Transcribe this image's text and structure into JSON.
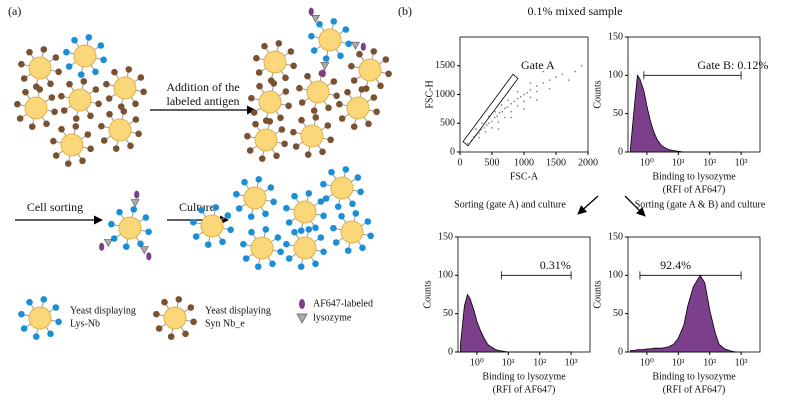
{
  "panel_a": {
    "label": "(a)",
    "addition_step": [
      "Addition of the",
      "labeled antigen"
    ],
    "sorting_step": "Cell sorting",
    "culture_step": "Culture",
    "legend": [
      [
        "Yeast displaying",
        "Lys-Nb"
      ],
      [
        "Yeast displaying",
        "Syn Nb_e"
      ],
      [
        "AF647-labeled",
        "lysozyme"
      ]
    ]
  },
  "panel_b": {
    "label": "(b)",
    "title": "0.1% mixed sample",
    "sorting_labels": [
      "Sorting (gate A) and culture",
      "Sorting (gate A & B) and culture"
    ]
  },
  "chart_data": [
    {
      "type": "scatter",
      "xlabel": [
        "FSC-A"
      ],
      "ylabel": "FSC-H",
      "color": "#8a8a8a",
      "xlim": [
        0,
        2000
      ],
      "ylim": [
        0,
        2000
      ],
      "xticks": [
        0,
        500,
        1000,
        1500,
        2000
      ],
      "yticks": [
        0,
        500,
        1000,
        1500
      ],
      "x": [
        120,
        180,
        220,
        260,
        300,
        330,
        380,
        420,
        450,
        500,
        540,
        580,
        620,
        660,
        700,
        740,
        800,
        850,
        900,
        950,
        1000,
        1050,
        1100,
        1200,
        1300,
        1400,
        1500,
        1600,
        300,
        400,
        500,
        600,
        700,
        800,
        900,
        1000,
        1100,
        1200,
        350,
        450,
        550,
        650,
        750,
        600,
        800,
        1000,
        1200,
        1400,
        1700,
        1800,
        1900,
        1300,
        1100,
        900,
        250
      ],
      "values": [
        150,
        200,
        260,
        300,
        330,
        390,
        420,
        470,
        500,
        530,
        600,
        620,
        680,
        700,
        760,
        780,
        840,
        880,
        930,
        960,
        1000,
        1030,
        1080,
        1150,
        1200,
        1250,
        1300,
        1350,
        250,
        350,
        420,
        520,
        600,
        700,
        800,
        880,
        950,
        1050,
        500,
        620,
        700,
        820,
        900,
        400,
        600,
        750,
        900,
        1100,
        1250,
        1400,
        1500,
        1400,
        1200,
        1050,
        400
      ],
      "gate": {
        "label": "Gate A",
        "x": [
          47,
          828,
          906,
          125
        ],
        "y": [
          180,
          1351,
          1279,
          108
        ]
      }
    },
    {
      "type": "area",
      "xscale": "log",
      "xlabel": [
        "Binding to lysozyme",
        "(RFI of AF647)"
      ],
      "ylabel": "Counts",
      "color": "#7b3f8c",
      "xlim": [
        0.25,
        4000
      ],
      "ylim": [
        0,
        150
      ],
      "xticks": [
        {
          "value": 1,
          "label": "10⁰"
        },
        {
          "value": 10,
          "label": "10¹"
        },
        {
          "value": 100,
          "label": "10²"
        },
        {
          "value": 1000,
          "label": "10³"
        }
      ],
      "yticks": [
        0,
        50,
        100,
        150
      ],
      "x": [
        0.3,
        0.4,
        0.5,
        0.6,
        0.8,
        1,
        1.3,
        1.7,
        2.2,
        3,
        4,
        5,
        7,
        10,
        15,
        20,
        30,
        50,
        70,
        100,
        150,
        200,
        300,
        500,
        700,
        1000
      ],
      "values": [
        5,
        60,
        100,
        95,
        80,
        60,
        40,
        25,
        15,
        8,
        5,
        3,
        2,
        1,
        0,
        0,
        0,
        0,
        0,
        0,
        0,
        0,
        0,
        0,
        0,
        0
      ],
      "gate": {
        "label": "Gate B: 0.12%",
        "range": [
          0.8,
          1000
        ],
        "y": 100
      }
    },
    {
      "type": "area",
      "xscale": "log",
      "xlabel": [
        "Binding to lysozyme",
        "(RFI of AF647)"
      ],
      "ylabel": "Counts",
      "color": "#7b3f8c",
      "xlim": [
        0.25,
        4000
      ],
      "ylim": [
        0,
        150
      ],
      "xticks": [
        {
          "value": 1,
          "label": "10⁰"
        },
        {
          "value": 10,
          "label": "10¹"
        },
        {
          "value": 100,
          "label": "10²"
        },
        {
          "value": 1000,
          "label": "10³"
        }
      ],
      "yticks": [
        0,
        50,
        100,
        150
      ],
      "x": [
        0.3,
        0.4,
        0.5,
        0.6,
        0.8,
        1,
        1.3,
        1.7,
        2.2,
        3,
        4,
        5,
        7,
        10,
        15,
        20,
        30,
        50,
        70,
        100,
        150,
        200,
        300,
        500,
        700,
        1000
      ],
      "values": [
        10,
        60,
        75,
        70,
        55,
        40,
        28,
        18,
        10,
        6,
        3,
        2,
        1,
        0,
        0,
        0,
        0,
        0,
        0,
        0,
        0,
        0,
        0,
        0,
        0,
        0
      ],
      "gate": {
        "label": "0.31%",
        "range": [
          6,
          1000
        ],
        "y": 100
      }
    },
    {
      "type": "area",
      "xscale": "log",
      "xlabel": [
        "Binding to lysozyme",
        "(RFI of AF647)"
      ],
      "ylabel": "Counts",
      "color": "#7b3f8c",
      "xlim": [
        0.25,
        4000
      ],
      "ylim": [
        0,
        150
      ],
      "xticks": [
        {
          "value": 1,
          "label": "10⁰"
        },
        {
          "value": 10,
          "label": "10¹"
        },
        {
          "value": 100,
          "label": "10²"
        },
        {
          "value": 1000,
          "label": "10³"
        }
      ],
      "yticks": [
        0,
        50,
        100,
        150
      ],
      "x": [
        0.3,
        0.4,
        0.5,
        0.6,
        0.8,
        1,
        1.3,
        1.7,
        2.2,
        3,
        4,
        5,
        7,
        10,
        15,
        20,
        30,
        50,
        70,
        100,
        150,
        200,
        300,
        500,
        700,
        1000
      ],
      "values": [
        2,
        2,
        3,
        3,
        3,
        4,
        4,
        5,
        5,
        5,
        6,
        7,
        10,
        18,
        35,
        60,
        85,
        100,
        90,
        55,
        25,
        10,
        4,
        1,
        0,
        0
      ],
      "gate": {
        "label": "92.4%",
        "range": [
          0.6,
          1000
        ],
        "y": 100
      }
    }
  ]
}
